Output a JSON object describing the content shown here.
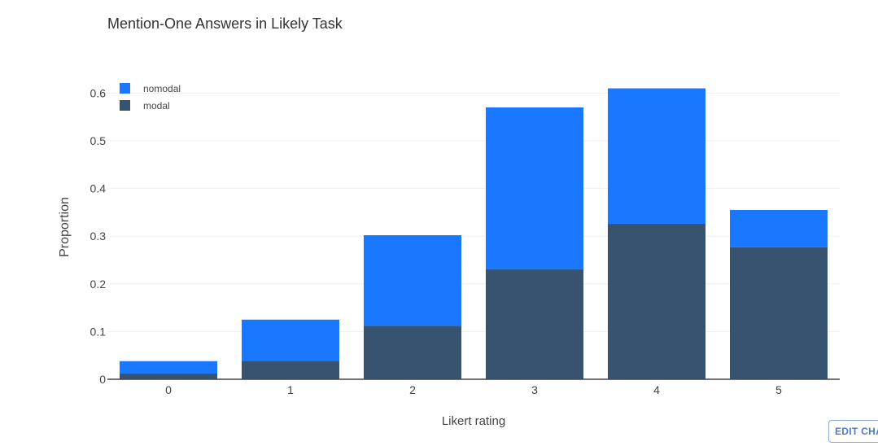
{
  "colors": {
    "nomodal": "#1a77ff",
    "modal": "#38536f",
    "grid": "#eeeeee",
    "axis_line": "#444444",
    "tick_text": "#444444"
  },
  "chart_data": {
    "type": "bar",
    "stacked": true,
    "title": "Mention-One Answers in Likely Task",
    "xlabel": "Likert rating",
    "ylabel": "Proportion",
    "categories": [
      "0",
      "1",
      "2",
      "3",
      "4",
      "5"
    ],
    "series": [
      {
        "name": "modal",
        "values": [
          0.012,
          0.039,
          0.112,
          0.231,
          0.326,
          0.277
        ]
      },
      {
        "name": "nomodal",
        "values": [
          0.026,
          0.086,
          0.19,
          0.339,
          0.284,
          0.078
        ]
      }
    ],
    "ylim": [
      0,
      0.65
    ],
    "yticks": [
      0,
      0.1,
      0.2,
      0.3,
      0.4,
      0.5,
      0.6
    ],
    "ytick_labels": [
      "0",
      "0.1",
      "0.2",
      "0.3",
      "0.4",
      "0.5",
      "0.6"
    ],
    "grid": true,
    "legend": {
      "placement": "top-left",
      "entries": [
        "nomodal",
        "modal"
      ]
    }
  },
  "ui": {
    "edit_button_label": "EDIT CHART"
  }
}
